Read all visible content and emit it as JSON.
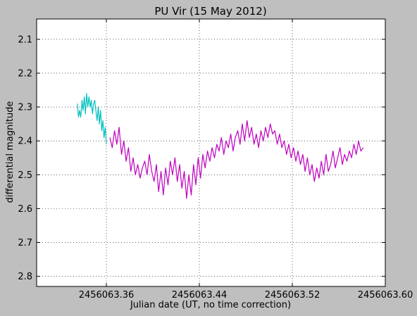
{
  "chart_data": {
    "type": "line",
    "title": "PU Vir (15 May 2012)",
    "xlabel": "Julian date (UT, no time correction)",
    "ylabel": "differential magnitude",
    "xlim": [
      2456063.3,
      2456063.6
    ],
    "ylim": [
      2.83,
      2.04
    ],
    "y_inverted": true,
    "grid": true,
    "xticks": [
      2456063.36,
      2456063.44,
      2456063.52,
      2456063.6
    ],
    "xtick_labels": [
      "2456063.36",
      "2456063.44",
      "2456063.52",
      "2456063.60"
    ],
    "yticks": [
      2.1,
      2.2,
      2.3,
      2.4,
      2.5,
      2.6,
      2.7,
      2.8
    ],
    "ytick_labels": [
      "2.1",
      "2.2",
      "2.3",
      "2.4",
      "2.5",
      "2.6",
      "2.7",
      "2.8"
    ],
    "series": [
      {
        "color": "#00bfbf",
        "x": [
          2456063.335,
          2456063.336,
          2456063.337,
          2456063.338,
          2456063.339,
          2456063.34,
          2456063.341,
          2456063.342,
          2456063.343,
          2456063.344,
          2456063.345,
          2456063.346,
          2456063.347,
          2456063.348,
          2456063.349,
          2456063.35,
          2456063.351,
          2456063.352,
          2456063.353,
          2456063.354,
          2456063.355,
          2456063.356,
          2456063.357,
          2456063.358,
          2456063.359,
          2456063.36
        ],
        "y": [
          2.29,
          2.33,
          2.31,
          2.33,
          2.28,
          2.31,
          2.27,
          2.32,
          2.26,
          2.3,
          2.27,
          2.3,
          2.28,
          2.32,
          2.29,
          2.28,
          2.31,
          2.34,
          2.3,
          2.35,
          2.31,
          2.37,
          2.34,
          2.39,
          2.36,
          2.41
        ]
      },
      {
        "color": "#bf00bf",
        "x": [
          2456063.363,
          2456063.365,
          2456063.367,
          2456063.369,
          2456063.371,
          2456063.373,
          2456063.375,
          2456063.377,
          2456063.379,
          2456063.381,
          2456063.383,
          2456063.385,
          2456063.387,
          2456063.389,
          2456063.391,
          2456063.393,
          2456063.395,
          2456063.397,
          2456063.399,
          2456063.401,
          2456063.403,
          2456063.405,
          2456063.407,
          2456063.409,
          2456063.411,
          2456063.413,
          2456063.415,
          2456063.417,
          2456063.419,
          2456063.421,
          2456063.423,
          2456063.425,
          2456063.427,
          2456063.429,
          2456063.431,
          2456063.433,
          2456063.435,
          2456063.437,
          2456063.439,
          2456063.441,
          2456063.443,
          2456063.445,
          2456063.447,
          2456063.449,
          2456063.451,
          2456063.453,
          2456063.455,
          2456063.457,
          2456063.459,
          2456063.461,
          2456063.463,
          2456063.465,
          2456063.467,
          2456063.469,
          2456063.471,
          2456063.473,
          2456063.475,
          2456063.477,
          2456063.479,
          2456063.481,
          2456063.483,
          2456063.485,
          2456063.487,
          2456063.489,
          2456063.491,
          2456063.493,
          2456063.495,
          2456063.497,
          2456063.499,
          2456063.501,
          2456063.503,
          2456063.505,
          2456063.507,
          2456063.509,
          2456063.511,
          2456063.513,
          2456063.515,
          2456063.517,
          2456063.519,
          2456063.521,
          2456063.523,
          2456063.525,
          2456063.527,
          2456063.529,
          2456063.531,
          2456063.533,
          2456063.535,
          2456063.537,
          2456063.539,
          2456063.541,
          2456063.543,
          2456063.545,
          2456063.547,
          2456063.549,
          2456063.551,
          2456063.553,
          2456063.555,
          2456063.557,
          2456063.559,
          2456063.561,
          2456063.563,
          2456063.565,
          2456063.567,
          2456063.569,
          2456063.571,
          2456063.573,
          2456063.575,
          2456063.577,
          2456063.579,
          2456063.581
        ],
        "y": [
          2.39,
          2.42,
          2.37,
          2.41,
          2.36,
          2.44,
          2.4,
          2.46,
          2.42,
          2.49,
          2.45,
          2.5,
          2.47,
          2.51,
          2.48,
          2.46,
          2.5,
          2.44,
          2.49,
          2.52,
          2.47,
          2.55,
          2.49,
          2.56,
          2.48,
          2.53,
          2.46,
          2.5,
          2.45,
          2.52,
          2.47,
          2.54,
          2.49,
          2.57,
          2.5,
          2.56,
          2.47,
          2.53,
          2.45,
          2.51,
          2.44,
          2.48,
          2.43,
          2.46,
          2.42,
          2.45,
          2.41,
          2.43,
          2.39,
          2.44,
          2.4,
          2.42,
          2.38,
          2.43,
          2.39,
          2.37,
          2.41,
          2.35,
          2.4,
          2.34,
          2.39,
          2.36,
          2.41,
          2.38,
          2.42,
          2.37,
          2.4,
          2.36,
          2.39,
          2.35,
          2.38,
          2.37,
          2.41,
          2.38,
          2.42,
          2.4,
          2.44,
          2.41,
          2.45,
          2.42,
          2.46,
          2.43,
          2.47,
          2.44,
          2.49,
          2.45,
          2.5,
          2.47,
          2.52,
          2.48,
          2.51,
          2.46,
          2.5,
          2.44,
          2.49,
          2.47,
          2.43,
          2.48,
          2.45,
          2.42,
          2.47,
          2.44,
          2.46,
          2.43,
          2.45,
          2.41,
          2.44,
          2.4,
          2.43,
          2.42
        ]
      }
    ]
  }
}
